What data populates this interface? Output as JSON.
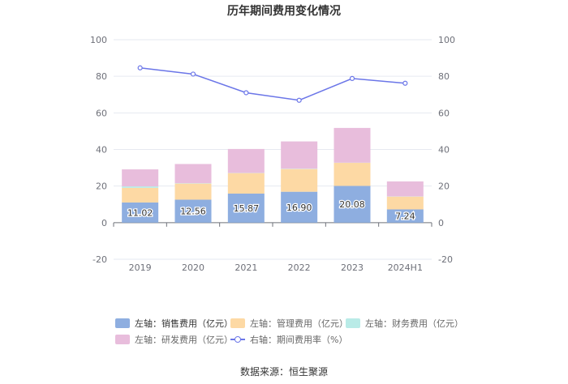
{
  "chart_data": {
    "type": "bar",
    "title": "历年期间费用变化情况",
    "categories": [
      "2019",
      "2020",
      "2021",
      "2022",
      "2023",
      "2024H1"
    ],
    "left_axis": {
      "ylim": [
        -20,
        100
      ],
      "ticks": [
        "-20",
        "0",
        "20",
        "40",
        "60",
        "80",
        "100"
      ]
    },
    "right_axis": {
      "ylim": [
        -20,
        100
      ],
      "ticks": [
        "-20",
        "0",
        "20",
        "40",
        "60",
        "80",
        "100"
      ]
    },
    "series": [
      {
        "name": "左轴：销售费用（亿元）",
        "type": "bar",
        "color": "#8eaee0",
        "values": [
          11.02,
          12.56,
          15.87,
          16.9,
          20.08,
          7.24
        ],
        "labels": [
          "11.02",
          "12.56",
          "15.87",
          "16.90",
          "20.08",
          "7.24"
        ]
      },
      {
        "name": "左轴：管理费用（亿元）",
        "type": "bar",
        "color": "#fdd9a4",
        "values": [
          8.0,
          8.8,
          11.2,
          12.4,
          12.6,
          7.0
        ]
      },
      {
        "name": "左轴：财务费用（亿元）",
        "type": "bar",
        "color": "#b9ebe7",
        "values": [
          0.8,
          0.2,
          0.1,
          0.2,
          0.1,
          0.1
        ]
      },
      {
        "name": "左轴：研发费用（亿元）",
        "type": "bar",
        "color": "#e8bddc",
        "values": [
          9.3,
          10.5,
          13.1,
          14.9,
          19.0,
          8.2
        ]
      },
      {
        "name": "右轴：期间费用率（%）",
        "type": "line",
        "color": "#6b76e8",
        "values": [
          84.6,
          81.2,
          71.0,
          66.9,
          78.8,
          76.2
        ]
      }
    ]
  },
  "legend": {
    "items": [
      {
        "label": "左轴：销售费用（亿元）",
        "color": "#8eaee0",
        "kind": "bar"
      },
      {
        "label": "左轴：管理费用（亿元）",
        "color": "#fdd9a4",
        "kind": "bar"
      },
      {
        "label": "左轴：财务费用（亿元）",
        "color": "#b9ebe7",
        "kind": "bar"
      },
      {
        "label": "左轴：研发费用（亿元）",
        "color": "#e8bddc",
        "kind": "bar"
      },
      {
        "label": "右轴：期间费用率（%）",
        "color": "#6b76e8",
        "kind": "line"
      }
    ]
  },
  "source": "数据来源：恒生聚源"
}
